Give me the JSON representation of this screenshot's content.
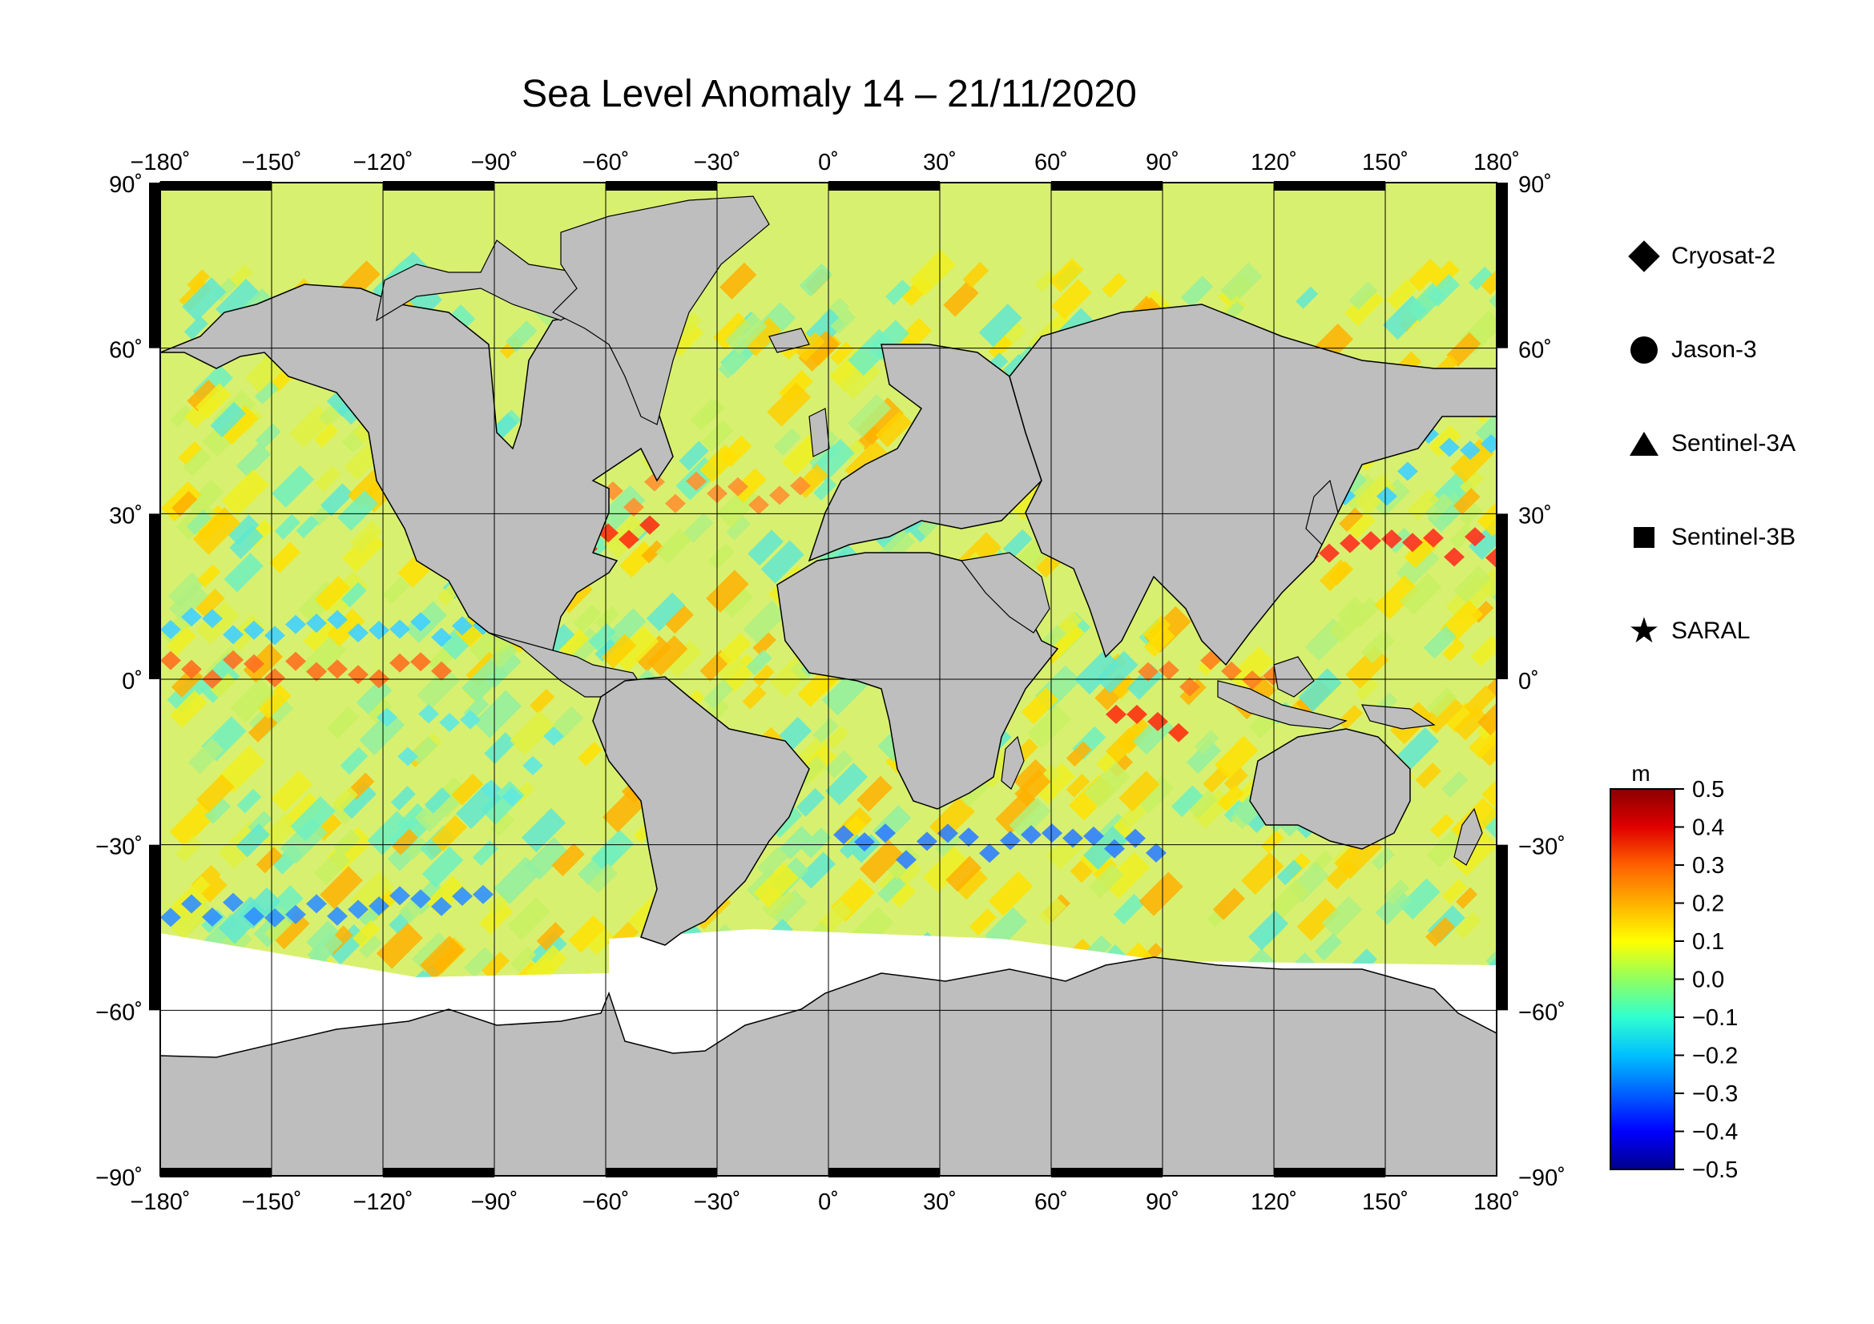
{
  "title": "Sea Level Anomaly 14 – 21/11/2020",
  "map": {
    "lon_range": [
      -180,
      180
    ],
    "lat_range": [
      -90,
      90
    ],
    "lon_ticks": [
      "−180˚",
      "−150˚",
      "−120˚",
      "−90˚",
      "−60˚",
      "−30˚",
      "0˚",
      "30˚",
      "60˚",
      "90˚",
      "120˚",
      "150˚",
      "180˚"
    ],
    "lat_ticks": [
      "90˚",
      "60˚",
      "30˚",
      "0˚",
      "−30˚",
      "−60˚",
      "−90˚"
    ],
    "land_color": "#bebebe",
    "ice_color": "#ffffff",
    "grid": true
  },
  "legend": {
    "items": [
      {
        "label": "Cryosat-2",
        "symbol": "diamond"
      },
      {
        "label": "Jason-3",
        "symbol": "circle"
      },
      {
        "label": "Sentinel-3A",
        "symbol": "triangle"
      },
      {
        "label": "Sentinel-3B",
        "symbol": "square"
      },
      {
        "label": "SARAL",
        "symbol": "star"
      }
    ]
  },
  "colorbar": {
    "unit": "m",
    "min": -0.5,
    "max": 0.5,
    "ticks": [
      "0.5",
      "0.4",
      "0.3",
      "0.2",
      "0.1",
      "0.0",
      "−0.1",
      "−0.2",
      "−0.3",
      "−0.4",
      "−0.5"
    ],
    "colors": [
      "#00008b",
      "#0000ff",
      "#0060ff",
      "#00c0ff",
      "#30ffd0",
      "#90ff60",
      "#ffff00",
      "#ffb000",
      "#ff6000",
      "#e00000",
      "#8b0000"
    ]
  }
}
